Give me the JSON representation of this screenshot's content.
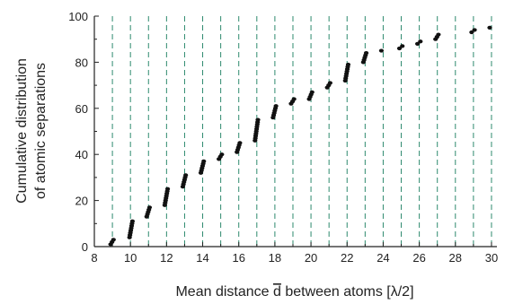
{
  "chart_data": {
    "type": "scatter",
    "title": "",
    "xlabel_prefix": "Mean distance ",
    "xlabel_symbol": "d",
    "xlabel_suffix": " between atoms [λ/2]",
    "ylabel_line1": "Cumulative distribution",
    "ylabel_line2": "of atomic separations",
    "xlim": [
      8,
      30.3
    ],
    "ylim": [
      0,
      100
    ],
    "x_ticks_major": [
      8,
      10,
      12,
      14,
      16,
      18,
      20,
      22,
      24,
      26,
      28,
      30
    ],
    "x_tick_labels": [
      "8",
      "10",
      "12",
      "14",
      "16",
      "18",
      "20",
      "22",
      "24",
      "26",
      "28",
      "30"
    ],
    "y_ticks_major": [
      0,
      20,
      40,
      60,
      80,
      100
    ],
    "y_tick_labels": [
      "0",
      "20",
      "40",
      "60",
      "80",
      "100"
    ],
    "grid": "vertical dashed at integer x from 9 to 30",
    "grid_x": [
      9,
      10,
      11,
      12,
      13,
      14,
      15,
      16,
      17,
      18,
      19,
      20,
      21,
      22,
      23,
      24,
      25,
      26,
      27,
      28,
      29,
      30
    ],
    "colors": {
      "grid": "#2e8a6e",
      "points": "#111111",
      "axes": "#222222"
    },
    "clusters": [
      {
        "x": 8.9,
        "y_start": 1,
        "y_end": 3
      },
      {
        "x": 9.95,
        "y_start": 4,
        "y_end": 11
      },
      {
        "x": 10.9,
        "y_start": 13,
        "y_end": 17
      },
      {
        "x": 11.9,
        "y_start": 18,
        "y_end": 25
      },
      {
        "x": 12.9,
        "y_start": 26,
        "y_end": 31
      },
      {
        "x": 13.9,
        "y_start": 32,
        "y_end": 37
      },
      {
        "x": 14.9,
        "y_start": 38,
        "y_end": 40
      },
      {
        "x": 15.9,
        "y_start": 41,
        "y_end": 45
      },
      {
        "x": 16.9,
        "y_start": 46,
        "y_end": 55
      },
      {
        "x": 17.9,
        "y_start": 56,
        "y_end": 61
      },
      {
        "x": 18.9,
        "y_start": 62,
        "y_end": 64
      },
      {
        "x": 19.9,
        "y_start": 64,
        "y_end": 67
      },
      {
        "x": 20.9,
        "y_start": 69,
        "y_end": 71
      },
      {
        "x": 21.9,
        "y_start": 72,
        "y_end": 79
      },
      {
        "x": 22.9,
        "y_start": 80,
        "y_end": 84
      },
      {
        "x": 23.9,
        "y_start": 85,
        "y_end": 85
      },
      {
        "x": 24.9,
        "y_start": 86,
        "y_end": 87
      },
      {
        "x": 25.9,
        "y_start": 88,
        "y_end": 89
      },
      {
        "x": 26.9,
        "y_start": 90,
        "y_end": 92
      },
      {
        "x": 28.9,
        "y_start": 93,
        "y_end": 94
      },
      {
        "x": 29.9,
        "y_start": 95,
        "y_end": 95
      }
    ]
  }
}
